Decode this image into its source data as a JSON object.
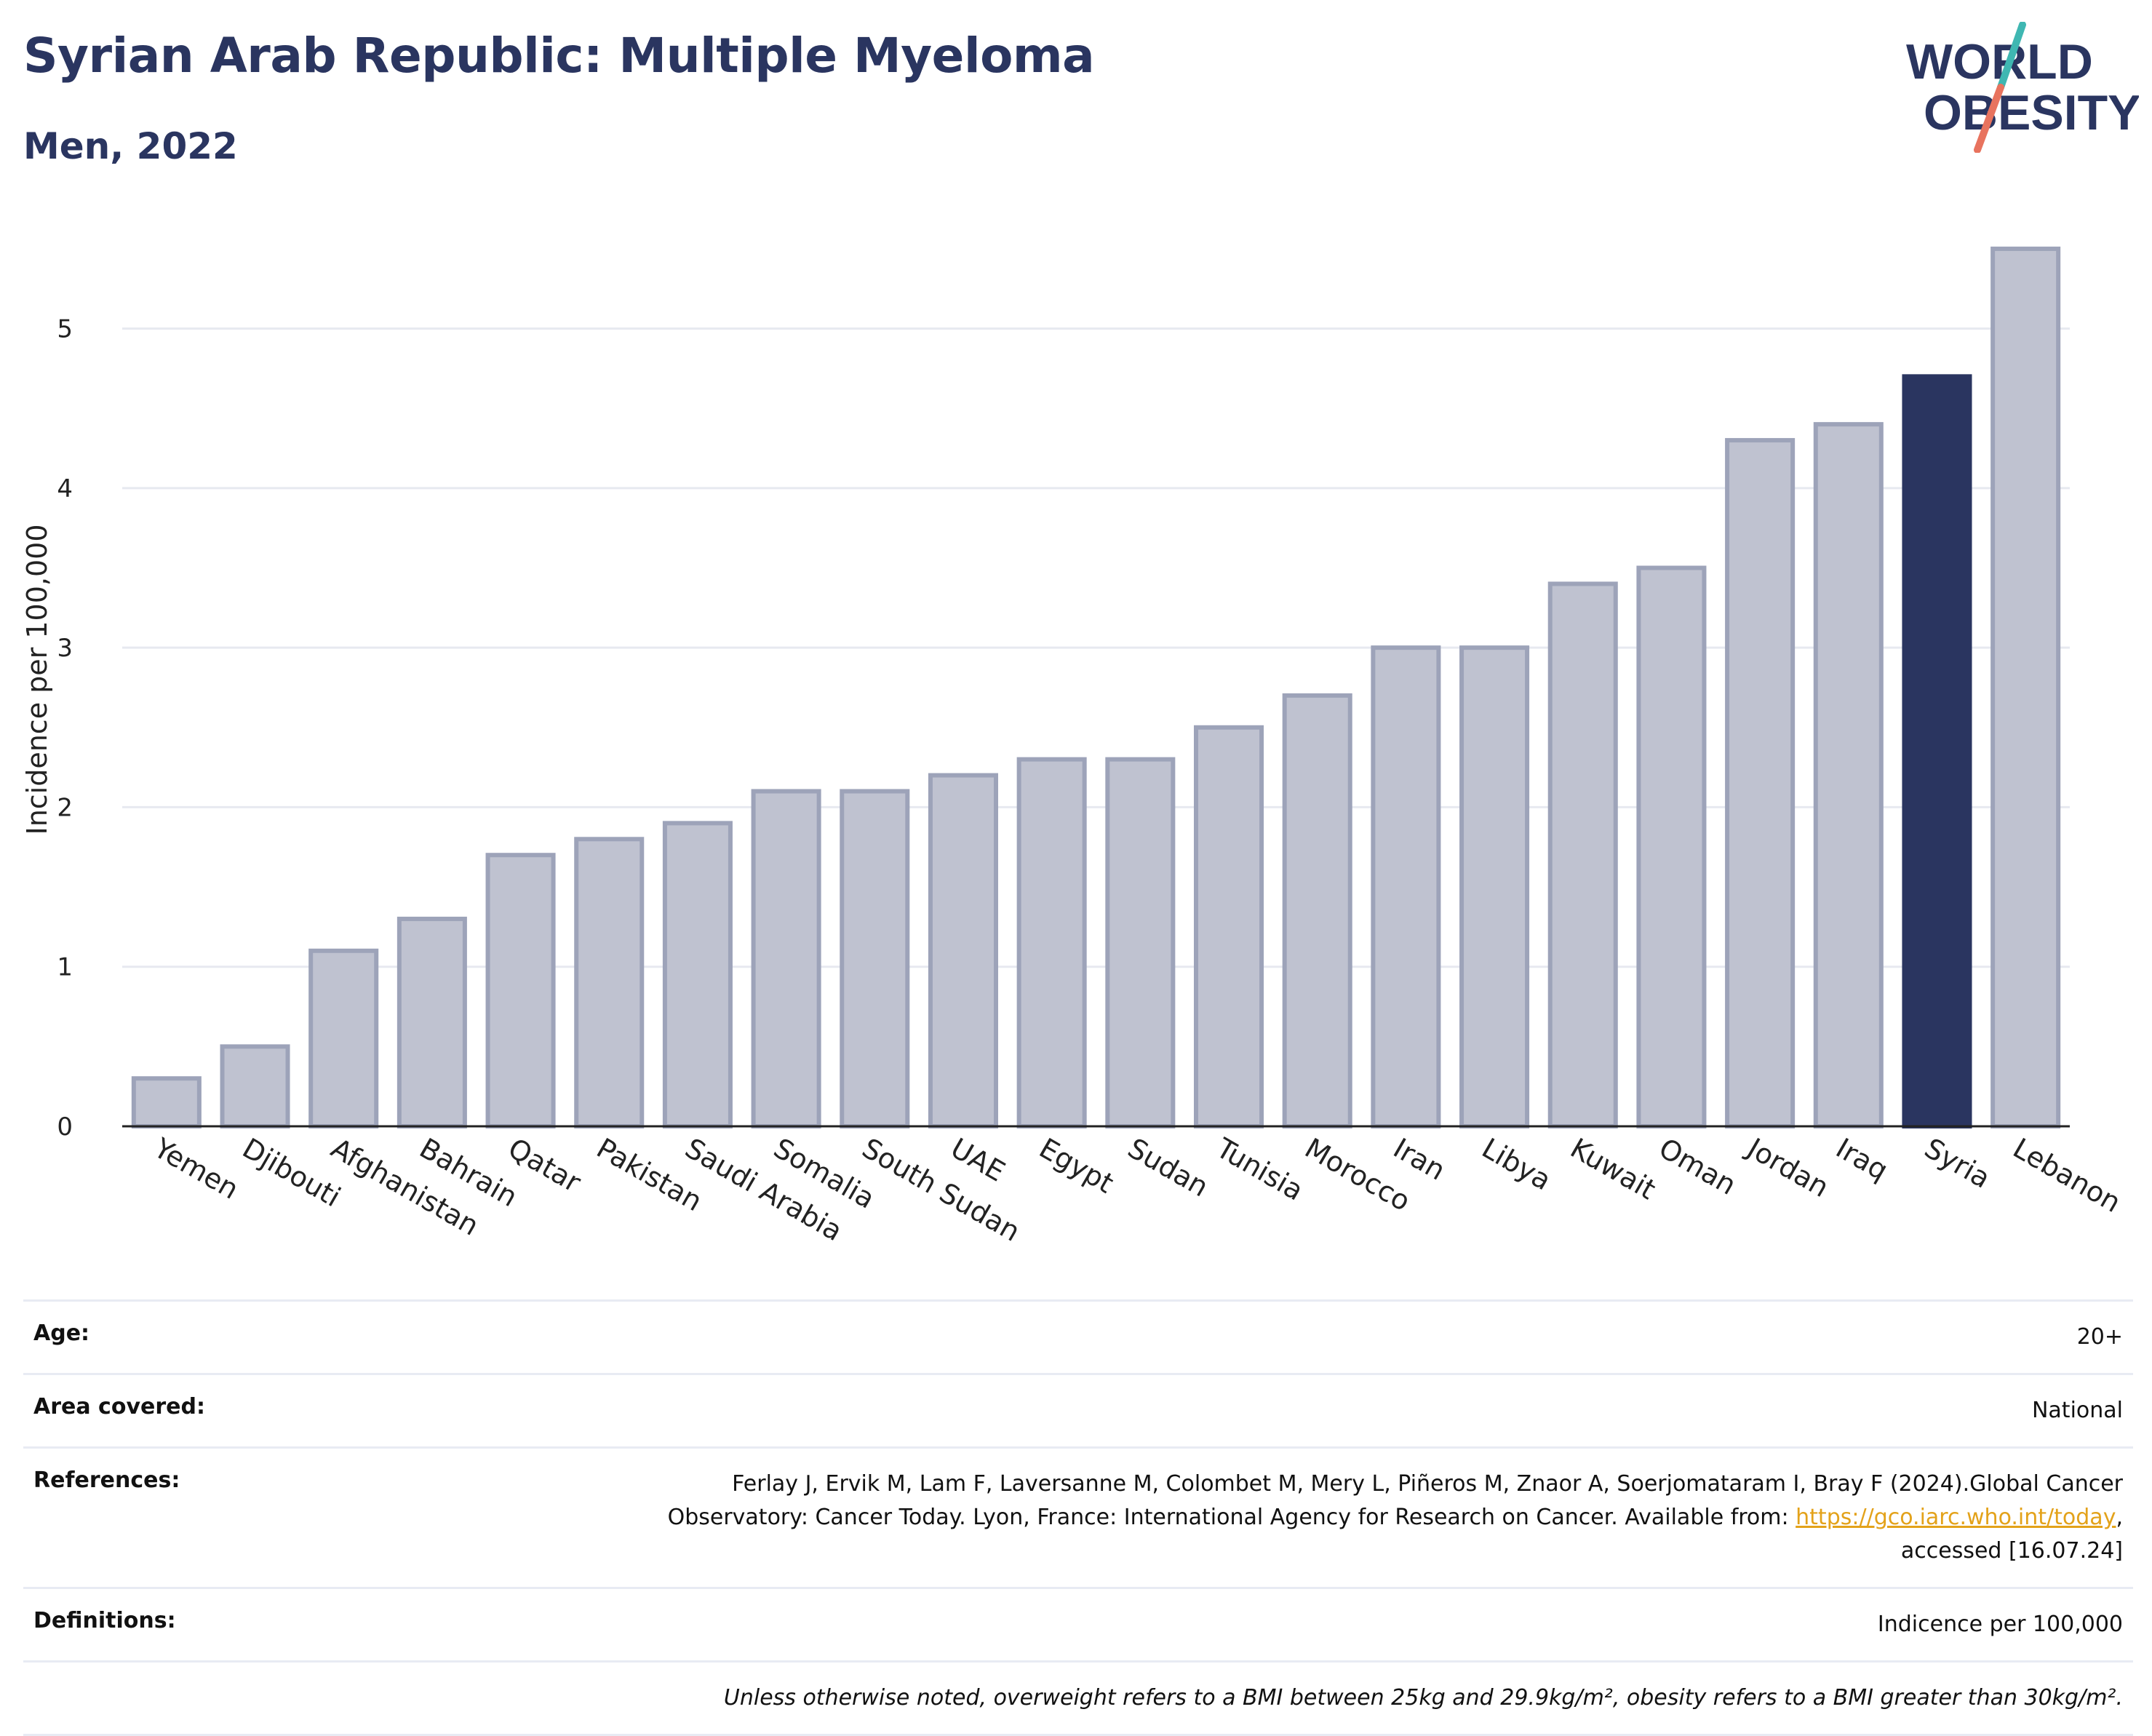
{
  "header": {
    "title": "Syrian Arab Republic: Multiple Myeloma",
    "subtitle": "Men, 2022"
  },
  "logo": {
    "line1": "WORLD",
    "line2": "OBESITY",
    "colors": {
      "text": "#2a3560",
      "slash_top": "#3fb7b2",
      "slash_bottom": "#e8735e"
    }
  },
  "colors": {
    "bar_fill": "#bfc2d0",
    "bar_stroke": "#9da3b9",
    "highlight": "#2a3560",
    "grid": "#e7e9f0",
    "axis": "#222222"
  },
  "chart_data": {
    "type": "bar",
    "title": "",
    "xlabel": "",
    "ylabel": "Incidence per 100,000",
    "ylim": [
      0,
      5.6
    ],
    "yticks": [
      0,
      1,
      2,
      3,
      4,
      5
    ],
    "grid": true,
    "highlight": "Syria",
    "categories": [
      "Yemen",
      "Djibouti",
      "Afghanistan",
      "Bahrain",
      "Qatar",
      "Pakistan",
      "Saudi Arabia",
      "Somalia",
      "South Sudan",
      "UAE",
      "Egypt",
      "Sudan",
      "Tunisia",
      "Morocco",
      "Iran",
      "Libya",
      "Kuwait",
      "Oman",
      "Jordan",
      "Iraq",
      "Syria",
      "Lebanon"
    ],
    "values": [
      0.3,
      0.5,
      1.1,
      1.3,
      1.7,
      1.8,
      1.9,
      2.1,
      2.1,
      2.2,
      2.3,
      2.3,
      2.5,
      2.7,
      3.0,
      3.0,
      3.4,
      3.5,
      4.3,
      4.4,
      4.7,
      5.5
    ]
  },
  "meta": {
    "age_label": "Age:",
    "age_value": "20+",
    "area_label": "Area covered:",
    "area_value": "National",
    "references_label": "References:",
    "references_line1": "Ferlay J, Ervik M, Lam F, Laversanne M, Colombet M, Mery L, Piñeros M, Znaor A, Soerjomataram I, Bray F (2024).Global Cancer",
    "references_line2_pre": "Observatory: Cancer Today. Lyon, France: International Agency for Research on Cancer. Available from: ",
    "references_link": "https://gco.iarc.who.int/today",
    "references_line2_post": ",",
    "references_line3": "accessed [16.07.24]",
    "definitions_label": "Definitions:",
    "definitions_value": "Indicence per 100,000",
    "note": "Unless otherwise noted, overweight refers to a BMI between 25kg and 29.9kg/m², obesity refers to a BMI greater than 30kg/m²."
  }
}
